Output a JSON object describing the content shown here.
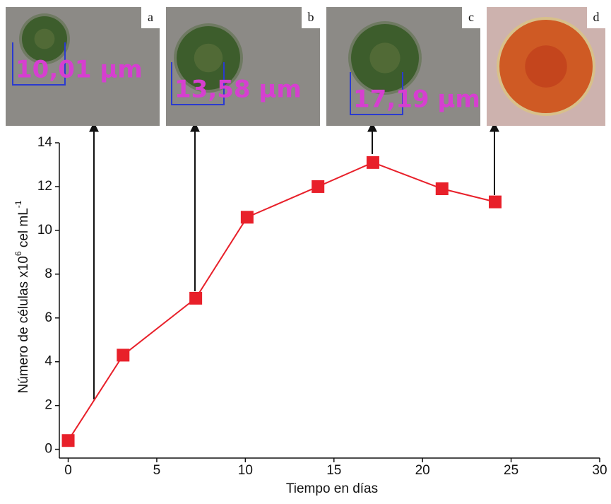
{
  "chart_data": {
    "type": "line",
    "xlabel": "Tiempo en días",
    "ylabel_parts": [
      "Número de células x10",
      "6",
      " cel mL",
      "-1"
    ],
    "x": [
      0,
      3.1,
      7.2,
      10.1,
      14.1,
      17.2,
      21.1,
      24.1
    ],
    "series": [
      {
        "color": "#e8202a",
        "values": [
          0.4,
          4.3,
          6.9,
          10.6,
          12.0,
          13.1,
          11.9,
          11.3
        ]
      }
    ],
    "xlim": [
      -0.5,
      30
    ],
    "ylim": [
      -0.4,
      14
    ],
    "xticks": [
      0,
      5,
      10,
      15,
      20,
      25,
      30
    ],
    "yticks": [
      0,
      2,
      4,
      6,
      8,
      10,
      12,
      14
    ],
    "panels": [
      {
        "label": "a",
        "measure": "10,01 µm"
      },
      {
        "label": "b",
        "measure": "13,58 µm"
      },
      {
        "label": "c",
        "measure": "17,19 µm"
      },
      {
        "label": "d"
      }
    ]
  }
}
